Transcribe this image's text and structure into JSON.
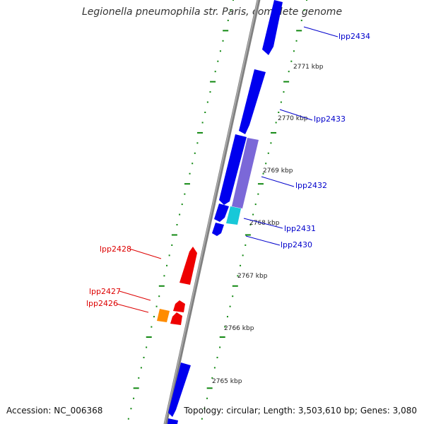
{
  "title": "Legionella pneumophila str. Paris, complete genome",
  "accession": "Accession: NC_006368",
  "summary": "Topology: circular; Length: 3,503,610 bp; Genes: 3,080",
  "colors": {
    "backbone": "#808080",
    "forward_gene": "#0000ee",
    "reverse_gene": "#ee0000",
    "purple_gene": "#7b68d8",
    "cyan_gene": "#18c8d8",
    "orange_gene": "#ff8c00",
    "tick": "#118811",
    "forward_label": "#0000cc",
    "reverse_label": "#dd0000"
  },
  "ticks": [
    {
      "label": "2771 kbp"
    },
    {
      "label": "2770 kbp"
    },
    {
      "label": "2769 kbp"
    },
    {
      "label": "2768 kbp"
    },
    {
      "label": "2767 kbp"
    },
    {
      "label": "2766 kbp"
    },
    {
      "label": "2765 kbp"
    }
  ],
  "gene_labels": {
    "lpp2434": "lpp2434",
    "lpp2433": "lpp2433",
    "lpp2432": "lpp2432",
    "lpp2431": "lpp2431",
    "lpp2430": "lpp2430",
    "lpp2428": "lpp2428",
    "lpp2427": "lpp2427",
    "lpp2426": "lpp2426"
  }
}
